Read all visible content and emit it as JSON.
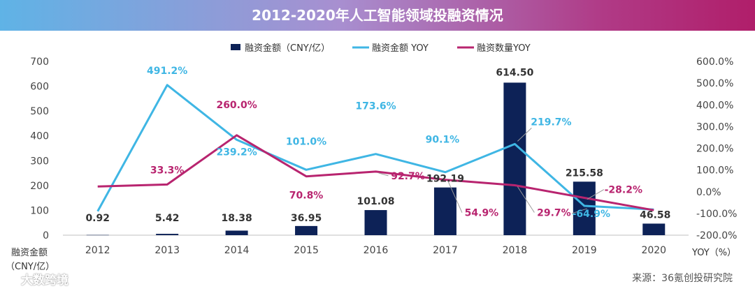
{
  "title": "2012-2020年人工智能领域投融资情况",
  "chart_data": {
    "type": "bar+line",
    "title": "2012-2020年人工智能领域投融资情况",
    "categories": [
      "2012",
      "2013",
      "2014",
      "2015",
      "2016",
      "2017",
      "2018",
      "2019",
      "2020"
    ],
    "y_left": {
      "label_line1": "融资金额",
      "label_line2": "（CNY/亿）",
      "ticks": [
        "0",
        "100",
        "200",
        "300",
        "400",
        "500",
        "600",
        "700"
      ],
      "range": [
        0,
        700
      ]
    },
    "y_right": {
      "label": "YOY（%）",
      "ticks": [
        "-200.0%",
        "-100.0%",
        "0.0%",
        "100.0%",
        "200.0%",
        "300.0%",
        "400.0%",
        "500.0%",
        "600.0%"
      ],
      "range": [
        -200,
        600
      ]
    },
    "series": [
      {
        "name": "融资金额（CNY/亿）",
        "kind": "bar",
        "axis": "left",
        "color": "#0d2257",
        "values": [
          0.92,
          5.42,
          18.38,
          36.95,
          101.08,
          192.19,
          614.5,
          215.58,
          46.58
        ],
        "labels": [
          "0.92",
          "5.42",
          "18.38",
          "36.95",
          "101.08",
          "192.19",
          "614.50",
          "215.58",
          "46.58"
        ]
      },
      {
        "name": "融资金额 YOY",
        "kind": "line",
        "axis": "right",
        "color": "#3fb6e4",
        "values": [
          -90,
          491.2,
          239.2,
          101.0,
          173.6,
          90.1,
          219.7,
          -64.9,
          -82
        ],
        "labels": [
          "",
          "491.2%",
          "239.2%",
          "101.0%",
          "173.6%",
          "90.1%",
          "219.7%",
          "-64.9%",
          ""
        ]
      },
      {
        "name": "融资数量YOY",
        "kind": "line",
        "axis": "right",
        "color": "#b8246f",
        "values": [
          24,
          33.3,
          260.0,
          70.8,
          92.7,
          54.9,
          29.7,
          -28.2,
          -85
        ],
        "labels": [
          "",
          "33.3%",
          "260.0%",
          "70.8%",
          "92.7%",
          "54.9%",
          "29.7%",
          "-28.2%",
          ""
        ]
      }
    ]
  },
  "source": "来源：36氪创投研究院",
  "watermark": "大数跨境"
}
